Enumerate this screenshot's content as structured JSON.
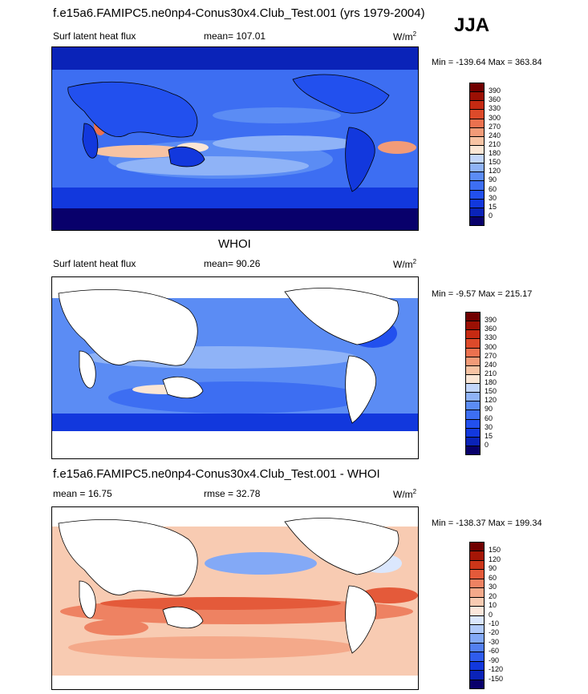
{
  "header": {
    "title": "f.e15a6.FAMIPC5.ne0np4-Conus30x4.Club_Test.001 (yrs 1979-2004)",
    "season": "JJA"
  },
  "panel1": {
    "left_label": "Surf latent heat flux",
    "mean_label": "mean= 107.01",
    "unit_label": "W/m",
    "unit_sup": "2",
    "minmax": "Min = -139.64 Max = 363.84",
    "levels": [
      "390",
      "360",
      "330",
      "300",
      "270",
      "240",
      "210",
      "180",
      "150",
      "120",
      "90",
      "60",
      "30",
      "15",
      "0"
    ]
  },
  "panel2": {
    "title": "WHOI",
    "left_label": "Surf latent heat flux",
    "mean_label": "mean=  90.26",
    "unit_label": "W/m",
    "unit_sup": "2",
    "minmax": "Min =  -9.57 Max = 215.17",
    "levels": [
      "390",
      "360",
      "330",
      "300",
      "270",
      "240",
      "210",
      "180",
      "150",
      "120",
      "90",
      "60",
      "30",
      "15",
      "0"
    ]
  },
  "panel3": {
    "title": "f.e15a6.FAMIPC5.ne0np4-Conus30x4.Club_Test.001 - WHOI",
    "left_label": "mean =  16.75",
    "mean_label": "rmse =  32.78",
    "unit_label": "W/m",
    "unit_sup": "2",
    "minmax": "Min = -138.37 Max = 199.34",
    "levels": [
      "150",
      "120",
      "90",
      "60",
      "30",
      "20",
      "10",
      "0",
      "-10",
      "-20",
      "-30",
      "-60",
      "-90",
      "-120",
      "-150"
    ]
  },
  "colors": {
    "abs_scale": [
      "#08006b",
      "#0a23b8",
      "#1238dd",
      "#2250ee",
      "#3d6ef2",
      "#5b8cf4",
      "#8fb3f7",
      "#c3d6fb",
      "#fbe6d5",
      "#f7c3a3",
      "#f29b78",
      "#ec714f",
      "#dd4a2a",
      "#c52a12",
      "#9b1004",
      "#700000"
    ],
    "diff_scale": [
      "#08006b",
      "#0a23b8",
      "#1238dd",
      "#2f5ced",
      "#5380f1",
      "#83a9f6",
      "#b2cbfa",
      "#dbe7fd",
      "#fbe7db",
      "#f8cbb2",
      "#f4a98a",
      "#ee8262",
      "#e45a3a",
      "#cc3619",
      "#a51606",
      "#700000"
    ]
  }
}
